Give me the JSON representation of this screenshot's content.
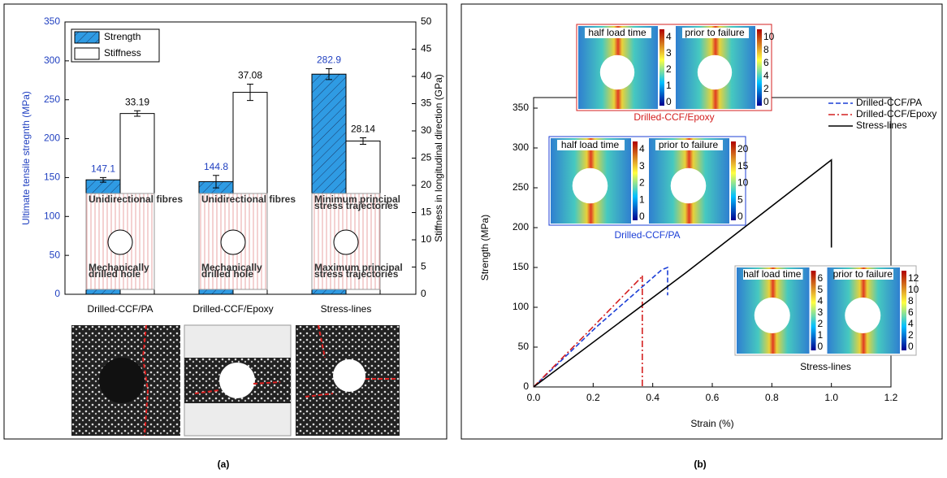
{
  "chart_data": [
    {
      "type": "bar",
      "panel_label": "(a)",
      "categories": [
        "Drilled-CCF/PA",
        "Drilled-CCF/Epoxy",
        "Stress-lines"
      ],
      "series": [
        {
          "name": "Strength",
          "color": "#2f9be3",
          "hatch": true,
          "values": [
            147.1,
            144.8,
            282.9
          ],
          "errors": [
            3,
            8,
            7
          ]
        },
        {
          "name": "Stiffness",
          "color": "#ffffff",
          "axis": "y2",
          "values": [
            33.19,
            37.08,
            28.14
          ],
          "errors": [
            0.5,
            1.5,
            0.6
          ]
        }
      ],
      "ylabel": "Ultimate tensile stregnth (MPa)",
      "y2label": "Stiffness in longitudinal direction (GPa)",
      "ylim": [
        0,
        350
      ],
      "yticks": [
        0,
        50,
        100,
        150,
        200,
        250,
        300,
        350
      ],
      "y2lim": [
        0,
        50
      ],
      "y2ticks": [
        0,
        5,
        10,
        15,
        20,
        25,
        30,
        35,
        40,
        45,
        50
      ],
      "legend": "upper left",
      "insets": [
        {
          "top": [
            "Unidirectional fibres"
          ],
          "bottom": [
            "Mechanically",
            "drilled hole"
          ]
        },
        {
          "top": [
            "Unidirectional fibres"
          ],
          "bottom": [
            "Mechanically",
            "drilled hole"
          ]
        },
        {
          "top": [
            "Minimum principal",
            "stress trajectories"
          ],
          "bottom": [
            "Maximum principal",
            "stress trajectories"
          ]
        }
      ]
    },
    {
      "type": "line",
      "panel_label": "(b)",
      "xlabel": "Strain (%)",
      "ylabel": "Strength (MPa)",
      "series": [
        {
          "name": "Drilled-CCF/PA",
          "color": "#1c3fd6",
          "dash": "dashed",
          "x": [
            0,
            0.21,
            0.43,
            0.45,
            0.45
          ],
          "values": [
            0,
            75,
            147,
            150,
            115
          ]
        },
        {
          "name": "Drilled-CCF/Epoxy",
          "color": "#d42020",
          "dash": "dashdot",
          "x": [
            0,
            0.18,
            0.36,
            0.365,
            0.365
          ],
          "values": [
            0,
            68,
            137,
            140,
            0
          ]
        },
        {
          "name": "Stress-lines",
          "color": "#000000",
          "dash": "solid",
          "x": [
            0,
            0.51,
            1.0,
            1.0
          ],
          "values": [
            0,
            143,
            285,
            175
          ]
        }
      ],
      "xlim": [
        0,
        1.2
      ],
      "xticks": [
        {
          "value": 0,
          "label": "0.0"
        },
        0.2,
        0.4,
        0.6,
        0.8,
        {
          "value": 1,
          "label": "1.0"
        },
        1.2
      ],
      "ylim": [
        0,
        350
      ],
      "yticks": [
        0,
        50,
        100,
        150,
        200,
        250,
        300,
        350
      ],
      "legend": "upper right",
      "insets": [
        {
          "label": "Drilled-CCF/Epoxy",
          "label_color": "#d42020",
          "panels": [
            {
              "title": "half load time",
              "cbar_ticks": [
                0,
                1,
                2,
                3,
                4
              ]
            },
            {
              "title": "prior to failure",
              "cbar_ticks": [
                0,
                2,
                4,
                6,
                8,
                10
              ]
            }
          ]
        },
        {
          "label": "Drilled-CCF/PA",
          "label_color": "#1c3fd6",
          "panels": [
            {
              "title": "half load time",
              "cbar_ticks": [
                0,
                1,
                2,
                3,
                4
              ]
            },
            {
              "title": "prior to failure",
              "cbar_ticks": [
                0,
                5,
                10,
                15,
                20
              ]
            }
          ]
        },
        {
          "label": "Stress-lines",
          "label_color": "#000000",
          "panels": [
            {
              "title": "half load time",
              "cbar_ticks": [
                0,
                1,
                2,
                3,
                4,
                5,
                6
              ]
            },
            {
              "title": "prior to failure",
              "cbar_ticks": [
                0,
                2,
                4,
                6,
                8,
                10,
                12
              ]
            }
          ]
        }
      ]
    }
  ]
}
